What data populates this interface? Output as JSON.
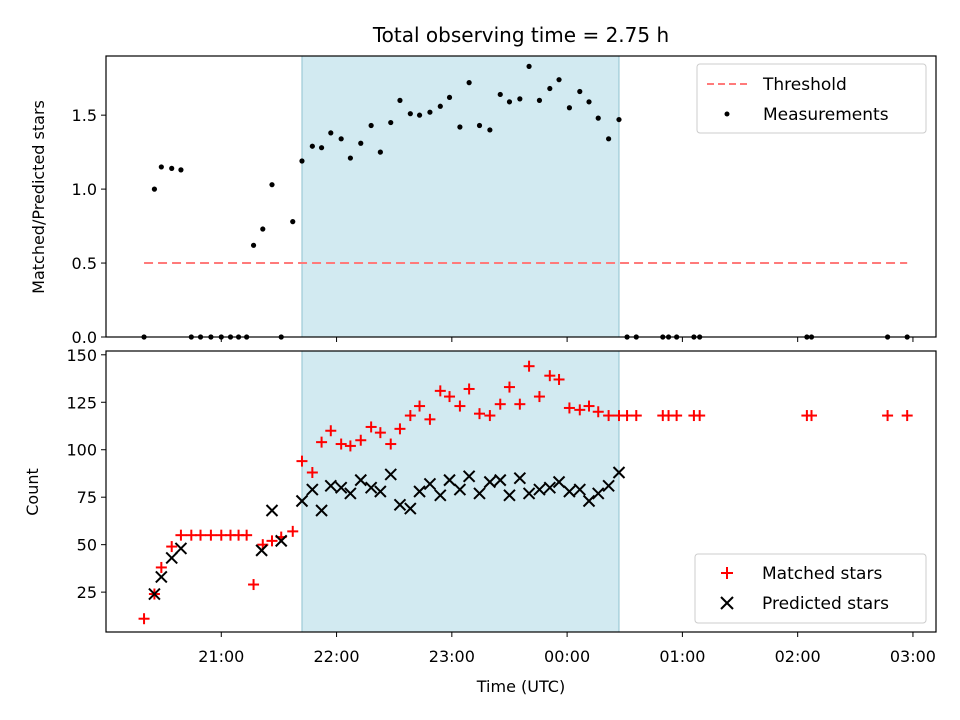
{
  "figure": {
    "title": "Total observing time = 2.75 h",
    "span_color": "#add8e6",
    "span": [
      21.7,
      24.45
    ]
  },
  "chart_data": [
    {
      "type": "scatter",
      "panel": "top",
      "title": "Total observing time = 2.75 h",
      "xlabel": "",
      "ylabel": "Matched/Predicted stars",
      "xlim": [
        20.0,
        27.2
      ],
      "ylim": [
        0.0,
        1.9
      ],
      "yticks": [
        0.0,
        0.5,
        1.0,
        1.5
      ],
      "xticks": [
        21,
        22,
        23,
        24,
        25,
        26,
        27
      ],
      "xtick_labels": [
        "21:00",
        "22:00",
        "23:00",
        "00:00",
        "01:00",
        "02:00",
        "03:00"
      ],
      "show_xtick_labels": false,
      "threshold": {
        "name": "Threshold",
        "y": 0.5,
        "x": [
          20.33,
          26.95
        ],
        "color": "#ff7a7a"
      },
      "series": [
        {
          "name": "Measurements",
          "color": "#000000",
          "x": [
            20.33,
            20.42,
            20.48,
            20.57,
            20.65,
            20.74,
            20.82,
            20.91,
            21.0,
            21.08,
            21.15,
            21.22,
            21.28,
            21.36,
            21.44,
            21.52,
            21.62,
            21.7,
            21.79,
            21.87,
            21.95,
            22.04,
            22.12,
            22.21,
            22.3,
            22.38,
            22.47,
            22.55,
            22.64,
            22.72,
            22.81,
            22.9,
            22.98,
            23.07,
            23.15,
            23.24,
            23.33,
            23.42,
            23.5,
            23.59,
            23.67,
            23.76,
            23.85,
            23.93,
            24.02,
            24.11,
            24.19,
            24.27,
            24.36,
            24.45,
            24.52,
            24.6,
            24.83,
            24.88,
            24.95,
            25.1,
            25.15,
            26.08,
            26.12,
            26.78,
            26.95
          ],
          "y": [
            0.0,
            1.0,
            1.15,
            1.14,
            1.13,
            0.0,
            0.0,
            0.0,
            0.0,
            0.0,
            0.0,
            0.0,
            0.62,
            0.73,
            1.03,
            0.0,
            0.78,
            1.19,
            1.29,
            1.28,
            1.38,
            1.34,
            1.21,
            1.31,
            1.43,
            1.25,
            1.45,
            1.6,
            1.51,
            1.5,
            1.52,
            1.56,
            1.62,
            1.42,
            1.72,
            1.43,
            1.4,
            1.64,
            1.59,
            1.61,
            1.83,
            1.6,
            1.68,
            1.74,
            1.55,
            1.66,
            1.59,
            1.48,
            1.34,
            1.47,
            0.0,
            0.0,
            0.0,
            0.0,
            0.0,
            0.0,
            0.0,
            0.0,
            0.0,
            0.0,
            0.0
          ]
        }
      ],
      "legend": {
        "placement": "upper right",
        "entries": [
          {
            "label": "Threshold",
            "marker": "dashed-line"
          },
          {
            "label": "Measurements",
            "marker": "dot"
          }
        ]
      }
    },
    {
      "type": "scatter",
      "panel": "bottom",
      "xlabel": "Time (UTC)",
      "ylabel": "Count",
      "xlim": [
        20.0,
        27.2
      ],
      "ylim": [
        4,
        152
      ],
      "yticks": [
        25,
        50,
        75,
        100,
        125,
        150
      ],
      "xticks": [
        21,
        22,
        23,
        24,
        25,
        26,
        27
      ],
      "xtick_labels": [
        "21:00",
        "22:00",
        "23:00",
        "00:00",
        "01:00",
        "02:00",
        "03:00"
      ],
      "series": [
        {
          "name": "Matched stars",
          "marker": "plus",
          "color": "#ff0000",
          "x": [
            20.33,
            20.42,
            20.48,
            20.57,
            20.65,
            20.74,
            20.82,
            20.91,
            21.0,
            21.08,
            21.15,
            21.22,
            21.28,
            21.36,
            21.44,
            21.52,
            21.62,
            21.7,
            21.79,
            21.87,
            21.95,
            22.04,
            22.12,
            22.21,
            22.3,
            22.38,
            22.47,
            22.55,
            22.64,
            22.72,
            22.81,
            22.9,
            22.98,
            23.07,
            23.15,
            23.24,
            23.33,
            23.42,
            23.5,
            23.59,
            23.67,
            23.76,
            23.85,
            23.93,
            24.02,
            24.11,
            24.19,
            24.27,
            24.36,
            24.45,
            24.52,
            24.6,
            24.83,
            24.88,
            24.95,
            25.1,
            25.15,
            26.08,
            26.12,
            26.78,
            26.95
          ],
          "y": [
            11,
            24,
            38,
            49,
            55,
            55,
            55,
            55,
            55,
            55,
            55,
            55,
            29,
            50,
            52,
            54,
            57,
            94,
            88,
            104,
            110,
            103,
            102,
            105,
            112,
            109,
            103,
            111,
            118,
            123,
            116,
            131,
            128,
            123,
            132,
            119,
            118,
            124,
            133,
            124,
            144,
            128,
            139,
            137,
            122,
            121,
            123,
            120,
            118,
            118,
            118,
            118,
            118,
            118,
            118,
            118,
            118,
            118,
            118,
            118,
            118
          ]
        },
        {
          "name": "Predicted stars",
          "marker": "x",
          "color": "#000000",
          "x": [
            20.42,
            20.48,
            20.57,
            20.65,
            21.35,
            21.44,
            21.52,
            21.7,
            21.79,
            21.87,
            21.95,
            22.04,
            22.12,
            22.21,
            22.3,
            22.38,
            22.47,
            22.55,
            22.64,
            22.72,
            22.81,
            22.9,
            22.98,
            23.07,
            23.15,
            23.24,
            23.33,
            23.42,
            23.5,
            23.59,
            23.67,
            23.76,
            23.85,
            23.93,
            24.02,
            24.11,
            24.19,
            24.27,
            24.36,
            24.45
          ],
          "y": [
            24,
            33,
            43,
            48,
            47,
            68,
            52,
            73,
            79,
            68,
            81,
            80,
            77,
            84,
            80,
            78,
            87,
            71,
            69,
            78,
            82,
            76,
            84,
            79,
            86,
            77,
            83,
            84,
            76,
            85,
            77,
            79,
            80,
            83,
            78,
            79,
            73,
            77,
            81,
            88
          ]
        }
      ],
      "legend": {
        "placement": "lower right",
        "entries": [
          {
            "label": "Matched stars",
            "marker": "plus"
          },
          {
            "label": "Predicted stars",
            "marker": "x"
          }
        ]
      }
    }
  ]
}
